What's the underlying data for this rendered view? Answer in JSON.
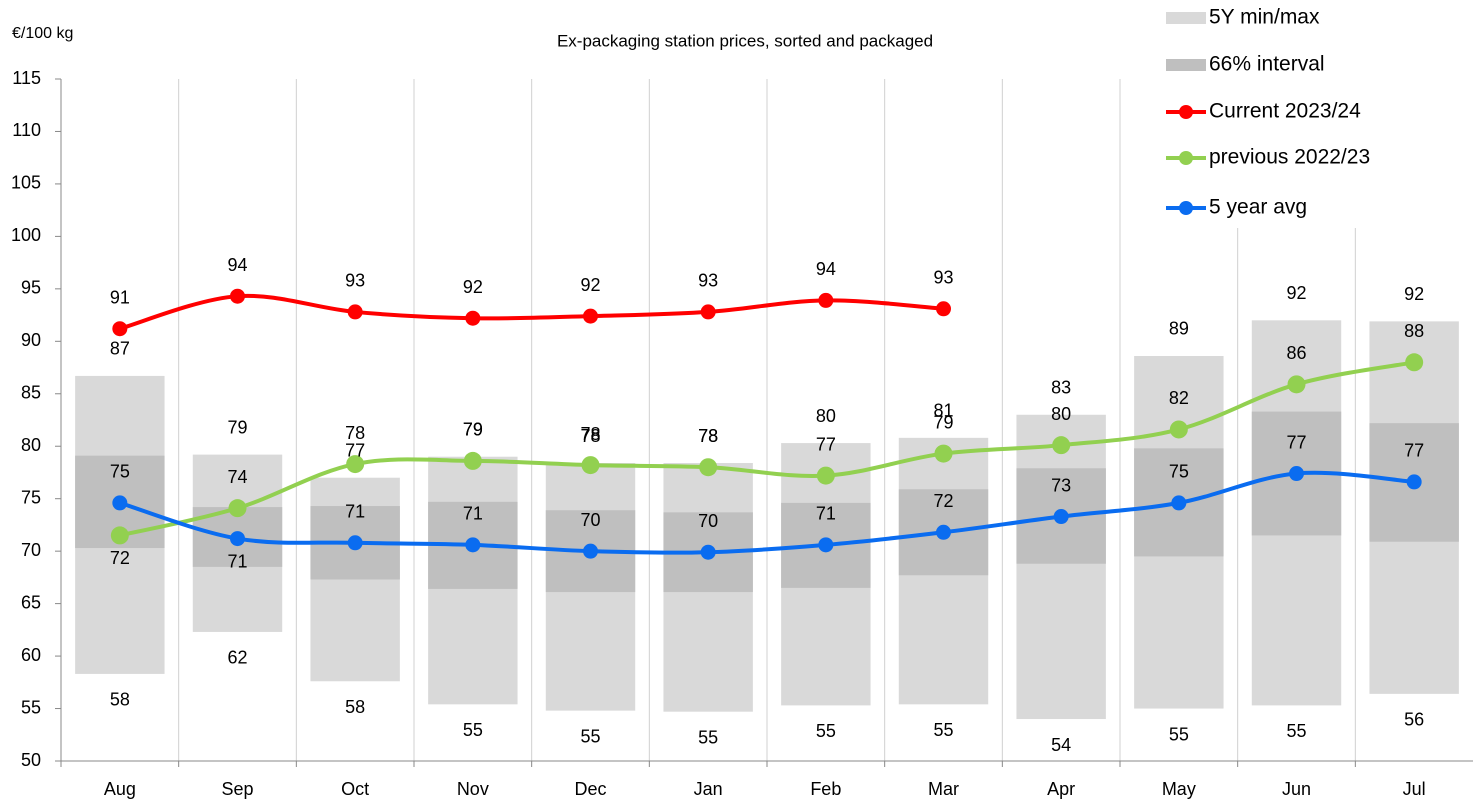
{
  "chart_data": {
    "type": "range_line",
    "title": "Ex-packaging station prices, sorted and packaged",
    "y_label": "€/100 kg",
    "categories": [
      "Aug",
      "Sep",
      "Oct",
      "Nov",
      "Dec",
      "Jan",
      "Feb",
      "Mar",
      "Apr",
      "May",
      "Jun",
      "Jul"
    ],
    "ylim": [
      50,
      115
    ],
    "yticks": [
      50,
      55,
      60,
      65,
      70,
      75,
      80,
      85,
      90,
      95,
      100,
      105,
      110,
      115
    ],
    "grid": true,
    "legend": "upper right",
    "series": [
      {
        "name": "5Y min/max",
        "type": "range",
        "color": "#d9d9d9",
        "low": [
          58.3,
          62.3,
          57.6,
          55.4,
          54.8,
          54.7,
          55.3,
          55.4,
          54.0,
          55.0,
          55.3,
          56.4
        ],
        "high": [
          86.7,
          79.2,
          77.0,
          79.0,
          78.4,
          78.4,
          80.3,
          80.8,
          83.0,
          88.6,
          92.0,
          91.9
        ],
        "low_labels": [
          "58",
          "62",
          "58",
          "55",
          "55",
          "55",
          "55",
          "55",
          "54",
          "55",
          "55",
          "56"
        ],
        "high_labels": [
          "87",
          "79",
          "77",
          "79",
          "78",
          "78",
          "80",
          "81",
          "83",
          "89",
          "92",
          "92"
        ]
      },
      {
        "name": "66% interval",
        "type": "range",
        "color": "#bfbfbf",
        "low": [
          70.3,
          68.5,
          67.3,
          66.4,
          66.1,
          66.1,
          66.5,
          67.7,
          68.8,
          69.5,
          71.5,
          70.9
        ],
        "high": [
          79.1,
          74.2,
          74.3,
          74.7,
          73.9,
          73.7,
          74.6,
          75.9,
          77.9,
          79.8,
          83.3,
          82.2
        ]
      },
      {
        "name": "Current 2023/24",
        "type": "line",
        "color": "#ff0000",
        "values": [
          91.2,
          94.3,
          92.8,
          92.2,
          92.4,
          92.8,
          93.9,
          93.1,
          null,
          null,
          null,
          null
        ],
        "value_labels": [
          "91",
          "94",
          "93",
          "92",
          "92",
          "93",
          "94",
          "93",
          null,
          null,
          null,
          null
        ]
      },
      {
        "name": "previous 2022/23",
        "type": "line",
        "color": "#92d050",
        "values": [
          71.5,
          74.1,
          78.3,
          78.6,
          78.2,
          78.0,
          77.2,
          79.3,
          80.1,
          81.6,
          85.9,
          88.0
        ],
        "value_labels": [
          "72",
          "74",
          "78",
          "79",
          "78",
          "78",
          "77",
          "79",
          "80",
          "82",
          "86",
          "88"
        ]
      },
      {
        "name": "5 year avg",
        "type": "line",
        "color": "#0a6cf0",
        "values": [
          74.6,
          71.2,
          70.8,
          70.6,
          70.0,
          69.9,
          70.6,
          71.8,
          73.3,
          74.6,
          77.4,
          76.6
        ],
        "value_labels": [
          "75",
          "71",
          "71",
          "71",
          "70",
          "70",
          "71",
          "72",
          "73",
          "75",
          "77",
          "77"
        ]
      }
    ]
  }
}
